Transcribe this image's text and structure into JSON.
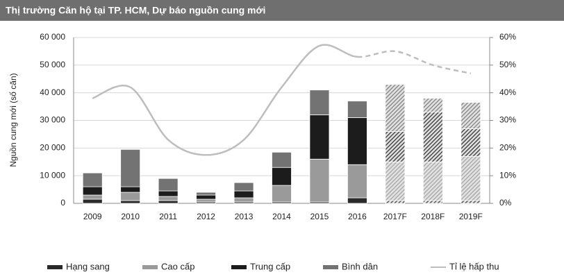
{
  "chart_data": {
    "type": "stacked_bar_line",
    "title": "Thị trường Căn hộ tại TP. HCM, Dự báo nguồn cung mới",
    "y_label": "Nguồn cung mới (số căn)",
    "categories": [
      "2009",
      "2010",
      "2011",
      "2012",
      "2013",
      "2014",
      "2015",
      "2016",
      "2017F",
      "2018F",
      "2019F"
    ],
    "series": [
      {
        "name": "Hạng sang",
        "color": "#2a2a2a",
        "values": [
          1500,
          1000,
          1000,
          500,
          500,
          500,
          500,
          2000,
          1000,
          1000,
          1000
        ]
      },
      {
        "name": "Cao cấp",
        "color": "#9a9a9a",
        "values": [
          1500,
          3000,
          1500,
          1000,
          1500,
          6000,
          15500,
          12000,
          14000,
          14000,
          16000
        ]
      },
      {
        "name": "Trung cấp",
        "color": "#1c1c1c",
        "values": [
          3000,
          2000,
          2000,
          1500,
          2500,
          6500,
          16000,
          17000,
          11000,
          18000,
          10000
        ]
      },
      {
        "name": "Bình dân",
        "color": "#737373",
        "values": [
          5000,
          13500,
          4500,
          1000,
          3000,
          5500,
          9000,
          6000,
          17000,
          5000,
          9500
        ]
      },
      {
        "name": "Tỉ lệ hấp thu",
        "color": "#bdbdbd",
        "axis": "y2",
        "values": [
          38,
          42,
          23,
          17.5,
          23,
          42,
          57,
          53,
          55,
          50,
          47
        ]
      }
    ],
    "ylim": [
      0,
      60000
    ],
    "yticks": [
      {
        "value": 0,
        "label": "0"
      },
      {
        "value": 10000,
        "label": "10 000"
      },
      {
        "value": 20000,
        "label": "20 000"
      },
      {
        "value": 30000,
        "label": "30 000"
      },
      {
        "value": 40000,
        "label": "40 000"
      },
      {
        "value": 50000,
        "label": "50 000"
      },
      {
        "value": 60000,
        "label": "60 000"
      }
    ],
    "y2lim": [
      0,
      60
    ],
    "y2ticks": [
      {
        "value": 0,
        "label": "0%"
      },
      {
        "value": 10,
        "label": "10%"
      },
      {
        "value": 20,
        "label": "20%"
      },
      {
        "value": 30,
        "label": "30%"
      },
      {
        "value": 40,
        "label": "40%"
      },
      {
        "value": 50,
        "label": "50%"
      },
      {
        "value": 60,
        "label": "60%"
      }
    ],
    "grid": true,
    "legend": "bottom"
  }
}
